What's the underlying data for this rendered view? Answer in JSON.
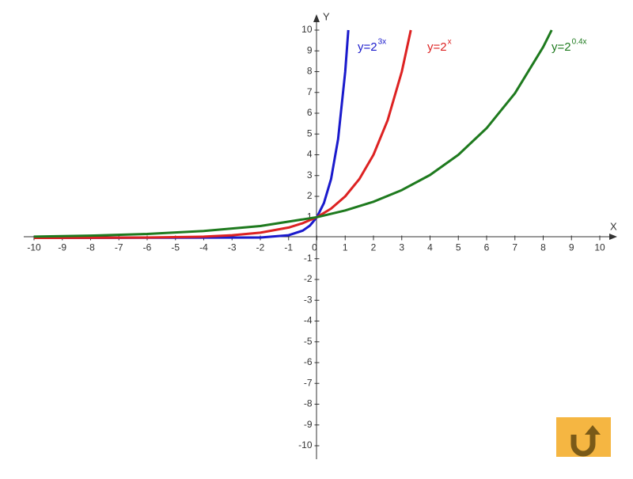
{
  "chart_data": {
    "type": "line",
    "x_label": "X",
    "y_label": "Y",
    "xlim": [
      -10,
      10
    ],
    "ylim": [
      -10,
      10
    ],
    "xticks": [
      -10,
      -9,
      -8,
      -7,
      -6,
      -5,
      -4,
      -3,
      -2,
      -1,
      0,
      1,
      2,
      3,
      4,
      5,
      6,
      7,
      8,
      9,
      10
    ],
    "yticks": [
      -10,
      -9,
      -8,
      -7,
      -6,
      -5,
      -4,
      -3,
      -2,
      -1,
      1,
      2,
      3,
      4,
      5,
      6,
      7,
      8,
      9,
      10
    ],
    "series": [
      {
        "label": "y=2",
        "exponent": "3x",
        "color": "#1a1acc",
        "x": [
          -10,
          -2,
          -1,
          -0.5,
          -0.25,
          0,
          0.25,
          0.5,
          0.75,
          1,
          1.11
        ],
        "values": [
          0,
          0.02,
          0.13,
          0.35,
          0.59,
          1,
          1.68,
          2.83,
          4.76,
          8,
          10
        ]
      },
      {
        "label": "y=2",
        "exponent": "x",
        "color": "#dd2222",
        "x": [
          -10,
          -6,
          -4,
          -3,
          -2,
          -1,
          -0.5,
          0,
          0.5,
          1,
          1.5,
          2,
          2.5,
          3,
          3.32
        ],
        "values": [
          0,
          0.02,
          0.06,
          0.13,
          0.25,
          0.5,
          0.71,
          1,
          1.41,
          2,
          2.83,
          4,
          5.66,
          8,
          10
        ]
      },
      {
        "label": "y=2",
        "exponent": "0.4x",
        "color": "#1e7a1e",
        "x": [
          -10,
          -8,
          -6,
          -4,
          -2,
          0,
          1,
          2,
          3,
          4,
          5,
          6,
          7,
          8,
          8.3
        ],
        "values": [
          0.06,
          0.11,
          0.19,
          0.33,
          0.57,
          1,
          1.32,
          1.74,
          2.3,
          3.03,
          4,
          5.28,
          6.96,
          9.19,
          10
        ]
      }
    ]
  }
}
